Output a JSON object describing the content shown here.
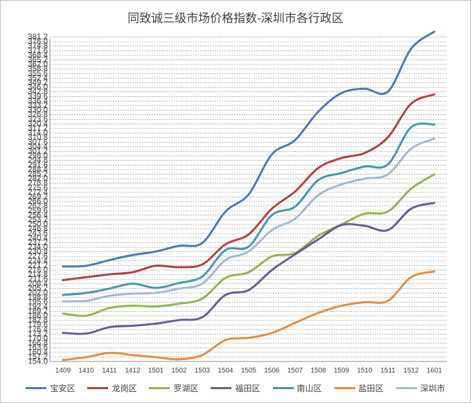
{
  "chart_data": {
    "type": "line",
    "title": "同致诚三级市场价格指数-深圳市各行政区",
    "xlabel": "",
    "ylabel": "",
    "ylim": [
      154.0,
      380.0
    ],
    "ytick_step": 3.2,
    "grid": true,
    "legend_position": "bottom",
    "categories": [
      "1409",
      "1410",
      "1411",
      "1412",
      "1501",
      "1502",
      "1503",
      "1504",
      "1505",
      "1506",
      "1507",
      "1508",
      "1509",
      "1510",
      "1511",
      "1512",
      "1601"
    ],
    "series": [
      {
        "name": "宝安区",
        "color": "#4a7ab9",
        "values": [
          220.5,
          221.0,
          225.0,
          228.5,
          231.0,
          235.0,
          237.0,
          259.0,
          271.0,
          299.0,
          309.0,
          329.0,
          342.0,
          345.0,
          343.0,
          373.0,
          385.0
        ]
      },
      {
        "name": "龙岗区",
        "color": "#b3403d",
        "values": [
          211.0,
          213.0,
          215.0,
          216.5,
          221.0,
          220.0,
          222.0,
          236.0,
          243.0,
          261.0,
          273.0,
          289.5,
          296.5,
          300.0,
          311.0,
          334.5,
          341.0
        ]
      },
      {
        "name": "罗湖区",
        "color": "#92b450",
        "values": [
          187.5,
          186.0,
          191.5,
          193.0,
          192.5,
          194.5,
          198.0,
          212.5,
          216.5,
          227.5,
          230.0,
          242.0,
          250.0,
          257.5,
          259.0,
          275.0,
          285.0
        ]
      },
      {
        "name": "福田区",
        "color": "#6e5a92",
        "values": [
          174.0,
          173.5,
          178.0,
          179.0,
          180.5,
          183.0,
          185.0,
          200.5,
          204.0,
          218.0,
          229.0,
          239.5,
          249.5,
          249.0,
          246.0,
          261.0,
          265.0
        ]
      },
      {
        "name": "南山区",
        "color": "#3e99b3",
        "values": [
          200.5,
          202.0,
          205.0,
          208.5,
          205.5,
          209.0,
          213.5,
          232.0,
          234.5,
          256.5,
          262.5,
          281.0,
          286.0,
          290.5,
          292.0,
          318.0,
          320.0
        ]
      },
      {
        "name": "盐田区",
        "color": "#ea8a3a",
        "values": [
          155.0,
          157.0,
          160.0,
          158.5,
          157.0,
          155.5,
          158.5,
          169.0,
          170.5,
          174.0,
          181.0,
          188.0,
          193.0,
          195.5,
          196.5,
          213.0,
          217.0
        ]
      },
      {
        "name": "深圳市",
        "color": "#a3b7d6",
        "values": [
          196.0,
          196.5,
          200.0,
          201.5,
          202.0,
          205.0,
          208.5,
          225.0,
          231.0,
          246.0,
          254.0,
          270.5,
          278.0,
          282.0,
          285.0,
          303.0,
          310.0
        ]
      }
    ]
  }
}
